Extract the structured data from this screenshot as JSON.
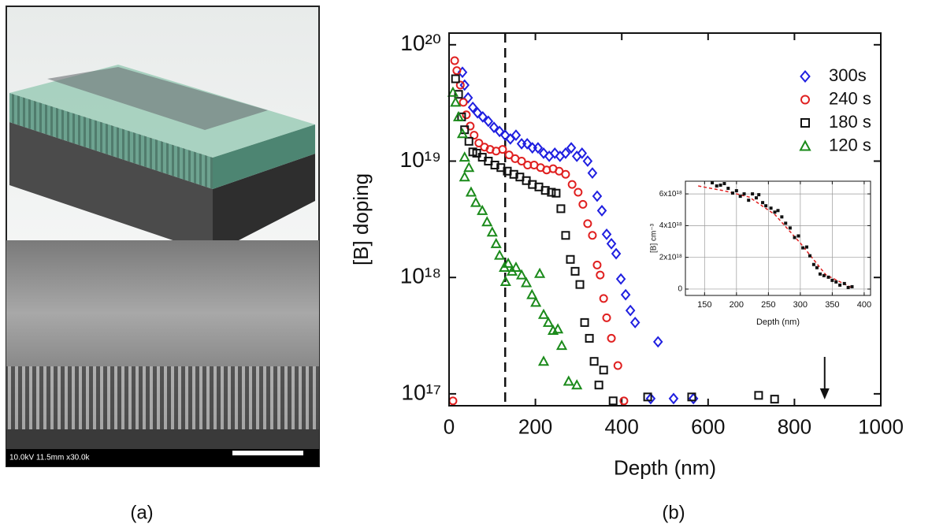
{
  "figure": {
    "panel_labels": [
      "(a)",
      "(b)"
    ],
    "sem_caption": "10.0kV 11.5mm x30.0k"
  },
  "chart_data": [
    {
      "type": "scatter",
      "x_label": "Depth (nm)",
      "y_label": "[B] doping",
      "xlim": [
        0,
        1000
      ],
      "xticks": [
        0,
        200,
        400,
        600,
        800,
        1000
      ],
      "ylim": [
        7.9e+16,
        1.26e+20
      ],
      "log_y": true,
      "yticks": [
        {
          "value": 1e+17,
          "label": "10¹⁷"
        },
        {
          "value": 1e+18,
          "label": "10¹⁸"
        },
        {
          "value": 1e+19,
          "label": "10¹⁹"
        },
        {
          "value": 1e+20,
          "label": "10²⁰"
        }
      ],
      "reference_line_x": 130,
      "arrow_x": 870,
      "legend": "upper right",
      "series": [
        {
          "name": "300s",
          "color": "#1f1fe0",
          "marker": "diamond",
          "x": [
            31,
            36,
            44,
            55,
            66,
            78,
            91,
            104,
            117,
            130,
            142,
            155,
            168,
            181,
            193,
            206,
            219,
            232,
            245,
            257,
            270,
            283,
            296,
            308,
            321,
            332,
            343,
            354,
            365,
            376,
            387,
            398,
            409,
            420,
            431,
            484,
            467,
            520,
            566
          ],
          "values": [
            5.8e+19,
            4.5e+19,
            3.5e+19,
            2.9e+19,
            2.6e+19,
            2.4e+19,
            2.2e+19,
            1.95e+19,
            1.8e+19,
            1.67e+19,
            1.55e+19,
            1.67e+19,
            1.41e+19,
            1.41e+19,
            1.3e+19,
            1.3e+19,
            1.17e+19,
            1.1e+19,
            1.17e+19,
            1.1e+19,
            1.17e+19,
            1.3e+19,
            1.1e+19,
            1.17e+19,
            1e+19,
            7.9e+18,
            5e+18,
            3.75e+18,
            2.35e+18,
            1.95e+18,
            1.6e+18,
            9.7e+17,
            7.1e+17,
            5.2e+17,
            4.1e+17,
            2.8e+17,
            9.1e+16,
            9.1e+16,
            9.1e+16
          ]
        },
        {
          "name": "240 s",
          "color": "#e02020",
          "marker": "circle",
          "x": [
            13,
            18,
            26,
            33,
            40,
            49,
            58,
            69,
            82,
            95,
            109,
            124,
            139,
            153,
            168,
            182,
            197,
            212,
            226,
            241,
            255,
            270,
            285,
            299,
            310,
            321,
            332,
            343,
            350,
            358,
            365,
            376,
            391,
            405,
            9
          ],
          "values": [
            7.3e+19,
            6e+19,
            4.5e+19,
            3.2e+19,
            2.5e+19,
            2e+19,
            1.67e+19,
            1.43e+19,
            1.32e+19,
            1.26e+19,
            1.22e+19,
            1.26e+19,
            1.13e+19,
            1.05e+19,
            1e+19,
            9.25e+18,
            9.25e+18,
            8.8e+18,
            8.4e+18,
            8.6e+18,
            8.2e+18,
            7.7e+18,
            6.3e+18,
            5.4e+18,
            4.25e+18,
            2.9e+18,
            2.3e+18,
            1.28e+18,
            1.05e+18,
            6.6e+17,
            4.5e+17,
            3e+17,
            1.75e+17,
            8.7e+16,
            8.7e+16
          ]
        },
        {
          "name": "180 s",
          "color": "#111111",
          "marker": "square",
          "x": [
            15,
            22,
            29,
            36,
            46,
            55,
            64,
            77,
            91,
            106,
            120,
            135,
            150,
            164,
            179,
            193,
            208,
            223,
            237,
            248,
            259,
            270,
            281,
            292,
            303,
            314,
            325,
            336,
            347,
            358,
            380,
            460,
            562,
            717,
            754
          ],
          "values": [
            5.1e+19,
            3.75e+19,
            2.4e+19,
            1.86e+19,
            1.48e+19,
            1.2e+19,
            1.17e+19,
            1.08e+19,
            1e+19,
            9.25e+18,
            8.8e+18,
            8.2e+18,
            7.7e+18,
            7.3e+18,
            6.8e+18,
            6.3e+18,
            6e+18,
            5.6e+18,
            5.4e+18,
            5.3e+18,
            3.9e+18,
            2.3e+18,
            1.43e+18,
            1.13e+18,
            8.7e+17,
            4.1e+17,
            3e+17,
            1.9e+17,
            1.19e+17,
            1.6e+17,
            8.7e+16,
            9.4e+16,
            9.4e+16,
            9.7e+16,
            9e+16
          ]
        },
        {
          "name": "120 s",
          "color": "#1a8a1a",
          "marker": "triangle",
          "x": [
            9,
            15,
            22,
            31,
            36,
            46,
            36,
            51,
            62,
            77,
            88,
            100,
            109,
            117,
            128,
            137,
            146,
            155,
            168,
            179,
            192,
            201,
            210,
            219,
            230,
            241,
            252,
            261,
            219,
            277,
            296,
            131
          ],
          "values": [
            3.9e+19,
            3.2e+19,
            2.4e+19,
            1.72e+19,
            1.08e+19,
            8.8e+18,
            7.3e+18,
            5.4e+18,
            4.4e+18,
            3.75e+18,
            3e+18,
            2.45e+18,
            1.95e+18,
            1.55e+18,
            1.22e+18,
            1.32e+18,
            1.13e+18,
            1.22e+18,
            1.05e+18,
            9e+17,
            7.1e+17,
            6.1e+17,
            1.08e+18,
            4.8e+17,
            4.1e+17,
            3.5e+17,
            3.6e+17,
            2.6e+17,
            1.9e+17,
            1.28e+17,
            1.19e+17,
            9.2e+17
          ]
        }
      ]
    },
    {
      "type": "scatter",
      "x_label": "Depth (nm)",
      "y_label": "[B] cm⁻³",
      "grid": true,
      "xlim": [
        120,
        410
      ],
      "xticks": [
        150,
        200,
        250,
        300,
        350,
        400
      ],
      "ylim": [
        -4e+17,
        6.8e+18
      ],
      "yticks": [
        0,
        {
          "value": 2e+18,
          "label": "2x10¹⁸"
        },
        {
          "value": 4e+18,
          "label": "4x10¹⁸"
        },
        {
          "value": 6e+18,
          "label": "6x10¹⁸"
        }
      ],
      "series": [
        {
          "color": "#111111",
          "marker": "filled-square",
          "x": [
            162,
            169,
            175,
            181,
            187,
            194,
            200,
            206,
            212,
            219,
            225,
            231,
            235,
            241,
            246,
            254,
            260,
            265,
            271,
            277,
            284,
            291,
            297,
            304,
            310,
            315,
            321,
            326,
            331,
            337,
            344,
            350,
            356,
            362,
            369,
            375,
            381
          ],
          "values": [
            6.7e+18,
            6.5e+18,
            6.55e+18,
            6.65e+18,
            6.35e+18,
            6.05e+18,
            6.2e+18,
            5.85e+18,
            6e+18,
            5.6e+18,
            6e+18,
            5.75e+18,
            5.95e+18,
            5.45e+18,
            5.25e+18,
            5.1e+18,
            4.85e+18,
            4.95e+18,
            4.55e+18,
            4.15e+18,
            3.85e+18,
            3.25e+18,
            3.35e+18,
            2.6e+18,
            2.65e+18,
            2.1e+18,
            1.55e+18,
            1.35e+18,
            9.5e+17,
            8.5e+17,
            7.5e+17,
            5.5e+17,
            4.5e+17,
            2.5e+17,
            3.5e+17,
            1e+17,
            1.5e+17
          ]
        }
      ],
      "fit": {
        "color": "#e02020",
        "dashed": true,
        "x": [
          140,
          180,
          220,
          260,
          300,
          340,
          380
        ],
        "values": [
          6.5e+18,
          6.2e+18,
          5.8e+18,
          4.7e+18,
          2.9e+18,
          9e+17,
          1e+17
        ]
      }
    }
  ]
}
